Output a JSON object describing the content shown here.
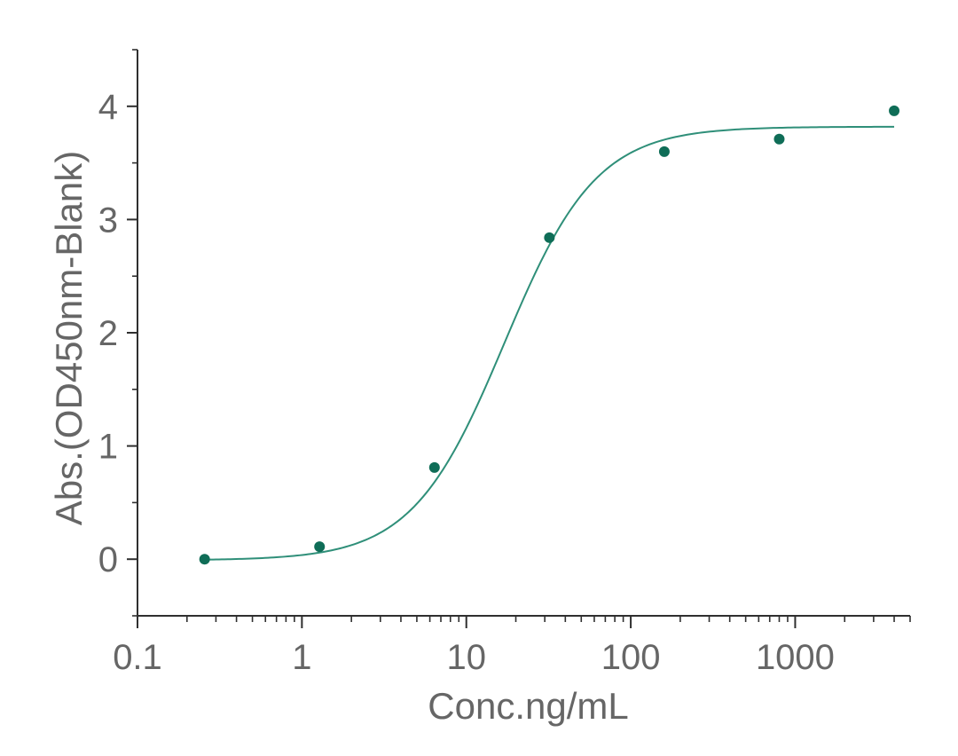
{
  "chart_data": {
    "type": "scatter",
    "title": "",
    "xlabel": "Conc.ng/mL",
    "ylabel": "Abs.(OD450nm-Blank)",
    "x_scale": "log",
    "xlim": [
      0.1,
      5000
    ],
    "ylim": [
      -0.5,
      4.5
    ],
    "x_ticks": [
      0.1,
      1,
      10,
      100,
      1000
    ],
    "x_tick_labels": [
      "0.1",
      "1",
      "10",
      "100",
      "1000"
    ],
    "y_ticks": [
      0,
      1,
      2,
      3,
      4
    ],
    "y_tick_labels": [
      "0",
      "1",
      "2",
      "3",
      "4"
    ],
    "grid": false,
    "legend": "none",
    "series": [
      {
        "x": [
          0.256,
          1.28,
          6.4,
          32,
          160,
          800,
          4000
        ],
        "y": [
          0.0,
          0.11,
          0.81,
          2.84,
          3.6,
          3.71,
          3.96
        ]
      }
    ],
    "fit": {
      "type": "4PL",
      "bottom": -0.01,
      "top": 3.82,
      "ec50": 17,
      "hill": 1.55
    },
    "colors": {
      "points": "#0f6d57",
      "curve": "#2f8f79",
      "axis": "#2f2f2f",
      "text": "#666666"
    }
  }
}
